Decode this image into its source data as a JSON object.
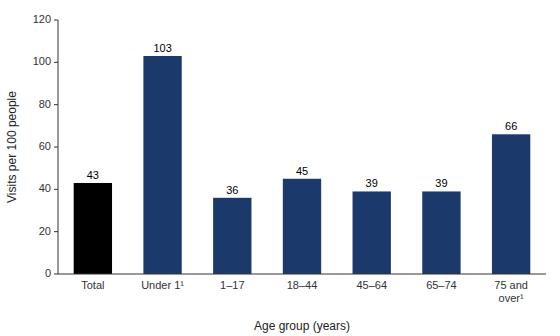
{
  "chart_data": {
    "type": "bar",
    "categories": [
      "Total",
      "Under 1¹",
      "1–17",
      "18–44",
      "45–64",
      "65–74",
      "75 and\nover¹"
    ],
    "values": [
      43,
      103,
      36,
      45,
      39,
      39,
      66
    ],
    "colors": [
      "#000000",
      "#1b3a6b",
      "#1b3a6b",
      "#1b3a6b",
      "#1b3a6b",
      "#1b3a6b",
      "#1b3a6b"
    ],
    "ylabel": "Visits per 100 people",
    "xlabel": "Age group (years)",
    "ylim": [
      0,
      120
    ],
    "yticks": [
      0,
      20,
      40,
      60,
      80,
      100,
      120
    ],
    "data_labels": true,
    "grid": false
  }
}
